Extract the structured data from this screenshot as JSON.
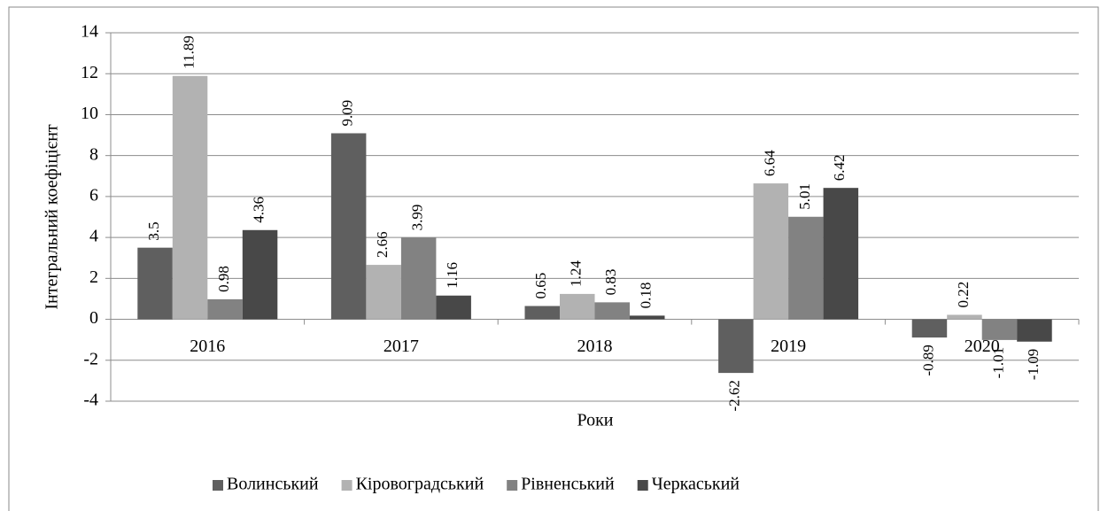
{
  "chart_data": {
    "type": "bar",
    "y_label": "Інтегральний коефіцієнт",
    "x_label": "Роки",
    "categories": [
      "2016",
      "2017",
      "2018",
      "2019",
      "2020"
    ],
    "series": [
      {
        "name": "Волинський",
        "color": "#5f5f5f",
        "values": [
          3.5,
          9.09,
          0.65,
          -2.62,
          -0.89
        ]
      },
      {
        "name": "Кіровоградський",
        "color": "#b2b2b2",
        "values": [
          11.89,
          2.66,
          1.24,
          6.64,
          0.22
        ]
      },
      {
        "name": "Рівненський",
        "color": "#828282",
        "values": [
          0.98,
          3.99,
          0.83,
          5.01,
          -1.01
        ]
      },
      {
        "name": "Черкаський",
        "color": "#484848",
        "values": [
          4.36,
          1.16,
          0.18,
          6.42,
          -1.09
        ]
      }
    ],
    "ylim": [
      -4,
      14
    ],
    "yticks": [
      -4,
      -2,
      0,
      2,
      4,
      6,
      8,
      10,
      12,
      14
    ],
    "grid": true,
    "legend": "bottom"
  }
}
